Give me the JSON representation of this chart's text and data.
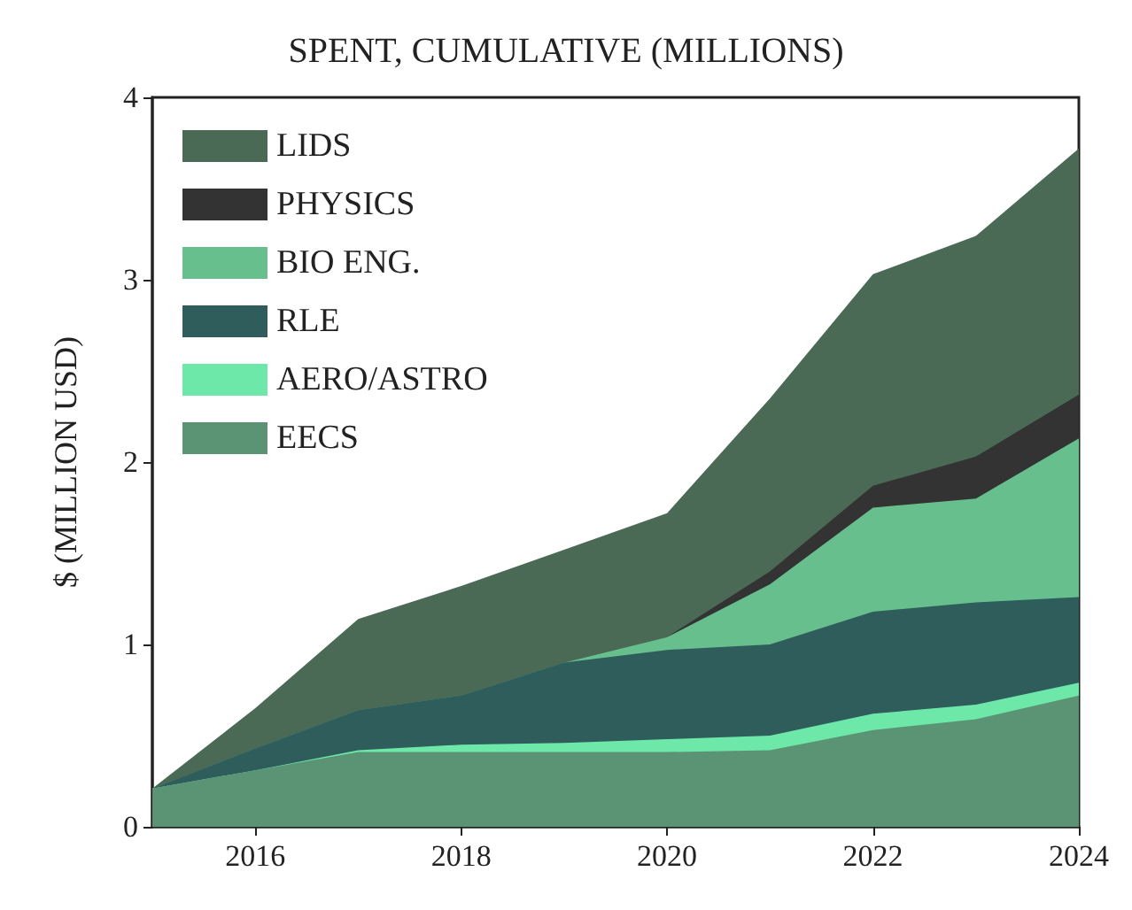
{
  "chart_data": {
    "type": "area",
    "title": "SPENT, CUMULATIVE (MILLIONS)",
    "ylabel": "$ (MILLION USD)",
    "stacked": true,
    "x": [
      2015,
      2016,
      2017,
      2018,
      2019,
      2020,
      2021,
      2022,
      2023,
      2024
    ],
    "series": [
      {
        "name": "EECS",
        "color": "#5a9474",
        "values": [
          0.21,
          0.31,
          0.41,
          0.41,
          0.41,
          0.41,
          0.42,
          0.53,
          0.59,
          0.72
        ]
      },
      {
        "name": "AERO/ASTRO",
        "color": "#6ee8a8",
        "values": [
          0,
          0,
          0.01,
          0.04,
          0.05,
          0.07,
          0.08,
          0.09,
          0.08,
          0.07
        ]
      },
      {
        "name": "RLE",
        "color": "#2f5d5c",
        "values": [
          0,
          0.12,
          0.22,
          0.27,
          0.44,
          0.49,
          0.5,
          0.56,
          0.56,
          0.47
        ]
      },
      {
        "name": "BIO ENG.",
        "color": "#66bf8c",
        "values": [
          0,
          0,
          0,
          0,
          0,
          0.07,
          0.33,
          0.57,
          0.57,
          0.87
        ]
      },
      {
        "name": "PHYSICS",
        "color": "#333333",
        "values": [
          0,
          0,
          0,
          0,
          0,
          0,
          0.07,
          0.12,
          0.23,
          0.24
        ]
      },
      {
        "name": "LIDS",
        "color": "#4a6a56",
        "values": [
          0,
          0.22,
          0.5,
          0.6,
          0.62,
          0.68,
          0.95,
          1.16,
          1.21,
          1.35
        ]
      }
    ],
    "xlim": [
      2015,
      2024
    ],
    "xticks": [
      2016,
      2018,
      2020,
      2022,
      2024
    ],
    "ylim": [
      0,
      4
    ],
    "yticks": [
      0,
      1,
      2,
      3,
      4
    ],
    "grid": false,
    "legend": "top left"
  }
}
